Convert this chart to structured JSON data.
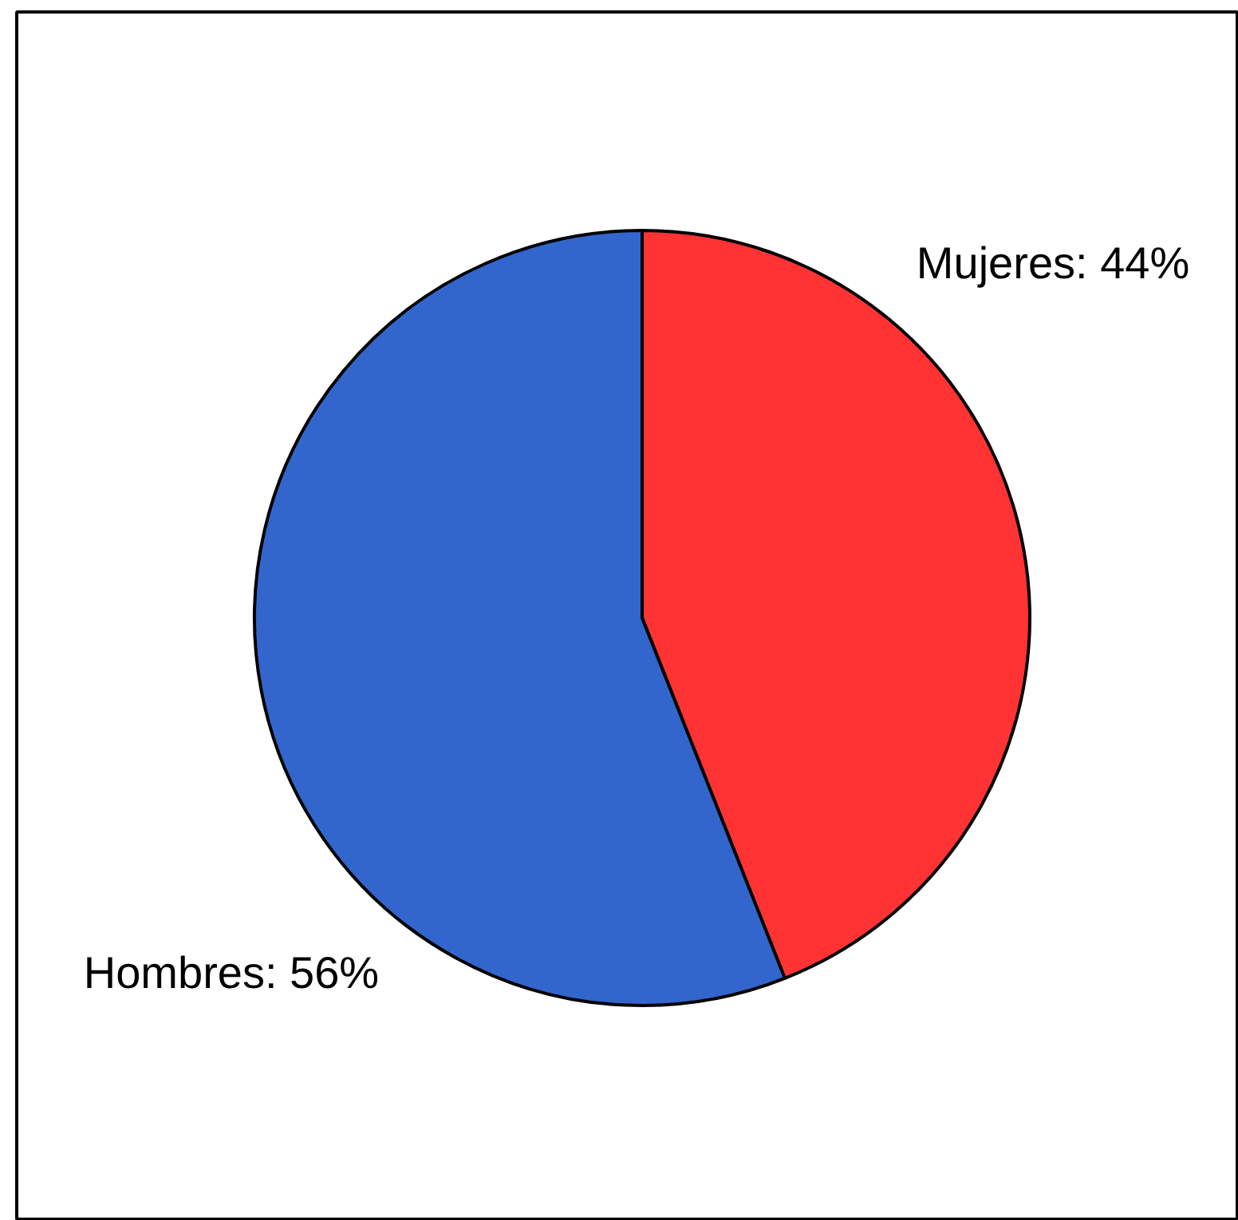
{
  "chart_data": {
    "type": "pie",
    "categories": [
      "Mujeres",
      "Hombres"
    ],
    "values": [
      44,
      56
    ],
    "colors": [
      "#ff3333",
      "#3366cc"
    ],
    "value_labels": [
      "44%",
      "56%"
    ]
  }
}
